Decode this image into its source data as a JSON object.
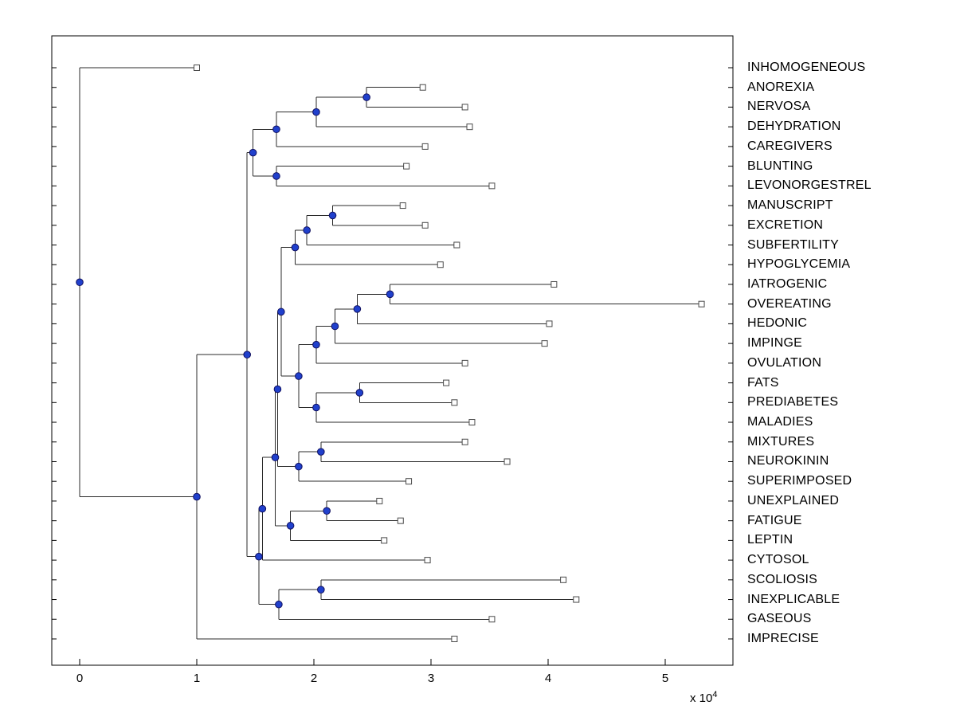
{
  "figure": {
    "title": "",
    "background": "#ffffff",
    "axes": {
      "x_ticks": [
        "0",
        "1",
        "2",
        "3",
        "4",
        "5"
      ],
      "x_tick_values": [
        0,
        1,
        2,
        3,
        4,
        5
      ],
      "exponent_label": {
        "base": "x 10",
        "exp": "4"
      }
    },
    "colors": {
      "axis": "#000000",
      "branch": "#2b2b2b",
      "internal_node": "#2040cc",
      "internal_node_edge": "#101060",
      "leaf_marker_fill": "#ffffff",
      "leaf_marker_edge": "#4a4a4a"
    }
  },
  "chart_data": {
    "type": "dendrogram",
    "orientation": "horizontal",
    "title": "",
    "xlabel": "",
    "ylabel": "",
    "x_unit_exponent": "x 10^4",
    "xlim": [
      -0.24,
      5.58
    ],
    "grid": false,
    "legend": "none",
    "leaf_order": [
      "INHOMOGENEOUS",
      "ANOREXIA",
      "NERVOSA",
      "DEHYDRATION",
      "CAREGIVERS",
      "BLUNTING",
      "LEVONORGESTREL",
      "MANUSCRIPT",
      "EXCRETION",
      "SUBFERTILITY",
      "HYPOGLYCEMIA",
      "IATROGENIC",
      "OVEREATING",
      "HEDONIC",
      "IMPINGE",
      "OVULATION",
      "FATS",
      "PREDIABETES",
      "MALADIES",
      "MIXTURES",
      "NEUROKININ",
      "SUPERIMPOSED",
      "UNEXPLAINED",
      "FATIGUE",
      "LEPTIN",
      "CYTOSOL",
      "SCOLIOSIS",
      "INEXPLICABLE",
      "GASEOUS",
      "IMPRECISE"
    ],
    "tree": {
      "x": 0.0,
      "children": [
        {
          "x": 1.0,
          "label": "INHOMOGENEOUS"
        },
        {
          "x": 1.0,
          "children": [
            {
              "x": 1.43,
              "children": [
                {
                  "x": 1.48,
                  "children": [
                    {
                      "x": 1.68,
                      "children": [
                        {
                          "x": 2.02,
                          "children": [
                            {
                              "x": 2.45,
                              "children": [
                                {
                                  "x": 2.93,
                                  "label": "ANOREXIA"
                                },
                                {
                                  "x": 3.29,
                                  "label": "NERVOSA"
                                }
                              ]
                            },
                            {
                              "x": 3.33,
                              "label": "DEHYDRATION"
                            }
                          ]
                        },
                        {
                          "x": 2.95,
                          "label": "CAREGIVERS"
                        }
                      ]
                    },
                    {
                      "x": 1.68,
                      "children": [
                        {
                          "x": 2.79,
                          "label": "BLUNTING"
                        },
                        {
                          "x": 3.52,
                          "label": "LEVONORGESTREL"
                        }
                      ]
                    }
                  ]
                },
                {
                  "x": 1.53,
                  "children": [
                    {
                      "x": 1.56,
                      "children": [
                        {
                          "x": 1.67,
                          "children": [
                            {
                              "x": 1.69,
                              "children": [
                                {
                                  "x": 1.72,
                                  "children": [
                                    {
                                      "x": 1.84,
                                      "children": [
                                        {
                                          "x": 1.94,
                                          "children": [
                                            {
                                              "x": 2.16,
                                              "children": [
                                                {
                                                  "x": 2.76,
                                                  "label": "MANUSCRIPT"
                                                },
                                                {
                                                  "x": 2.95,
                                                  "label": "EXCRETION"
                                                }
                                              ]
                                            },
                                            {
                                              "x": 3.22,
                                              "label": "SUBFERTILITY"
                                            }
                                          ]
                                        },
                                        {
                                          "x": 3.08,
                                          "label": "HYPOGLYCEMIA"
                                        }
                                      ]
                                    },
                                    {
                                      "x": 1.87,
                                      "children": [
                                        {
                                          "x": 2.02,
                                          "children": [
                                            {
                                              "x": 2.18,
                                              "children": [
                                                {
                                                  "x": 2.37,
                                                  "children": [
                                                    {
                                                      "x": 2.65,
                                                      "children": [
                                                        {
                                                          "x": 4.05,
                                                          "label": "IATROGENIC"
                                                        },
                                                        {
                                                          "x": 5.31,
                                                          "label": "OVEREATING"
                                                        }
                                                      ]
                                                    },
                                                    {
                                                      "x": 4.01,
                                                      "label": "HEDONIC"
                                                    }
                                                  ]
                                                },
                                                {
                                                  "x": 3.97,
                                                  "label": "IMPINGE"
                                                }
                                              ]
                                            },
                                            {
                                              "x": 3.29,
                                              "label": "OVULATION"
                                            }
                                          ]
                                        },
                                        {
                                          "x": 2.02,
                                          "children": [
                                            {
                                              "x": 2.39,
                                              "children": [
                                                {
                                                  "x": 3.13,
                                                  "label": "FATS"
                                                },
                                                {
                                                  "x": 3.2,
                                                  "label": "PREDIABETES"
                                                }
                                              ]
                                            },
                                            {
                                              "x": 3.35,
                                              "label": "MALADIES"
                                            }
                                          ]
                                        }
                                      ]
                                    }
                                  ]
                                },
                                {
                                  "x": 1.87,
                                  "children": [
                                    {
                                      "x": 2.06,
                                      "children": [
                                        {
                                          "x": 3.29,
                                          "label": "MIXTURES"
                                        },
                                        {
                                          "x": 3.65,
                                          "label": "NEUROKININ"
                                        }
                                      ]
                                    },
                                    {
                                      "x": 2.81,
                                      "label": "SUPERIMPOSED"
                                    }
                                  ]
                                }
                              ]
                            },
                            {
                              "x": 1.8,
                              "children": [
                                {
                                  "x": 2.11,
                                  "children": [
                                    {
                                      "x": 2.56,
                                      "label": "UNEXPLAINED"
                                    },
                                    {
                                      "x": 2.74,
                                      "label": "FATIGUE"
                                    }
                                  ]
                                },
                                {
                                  "x": 2.6,
                                  "label": "LEPTIN"
                                }
                              ]
                            }
                          ]
                        },
                        {
                          "x": 2.97,
                          "label": "CYTOSOL"
                        }
                      ]
                    },
                    {
                      "x": 1.7,
                      "children": [
                        {
                          "x": 2.06,
                          "children": [
                            {
                              "x": 4.13,
                              "label": "SCOLIOSIS"
                            },
                            {
                              "x": 4.24,
                              "label": "INEXPLICABLE"
                            }
                          ]
                        },
                        {
                          "x": 3.52,
                          "label": "GASEOUS"
                        }
                      ]
                    }
                  ]
                }
              ]
            },
            {
              "x": 3.2,
              "label": "IMPRECISE"
            }
          ]
        }
      ]
    }
  }
}
